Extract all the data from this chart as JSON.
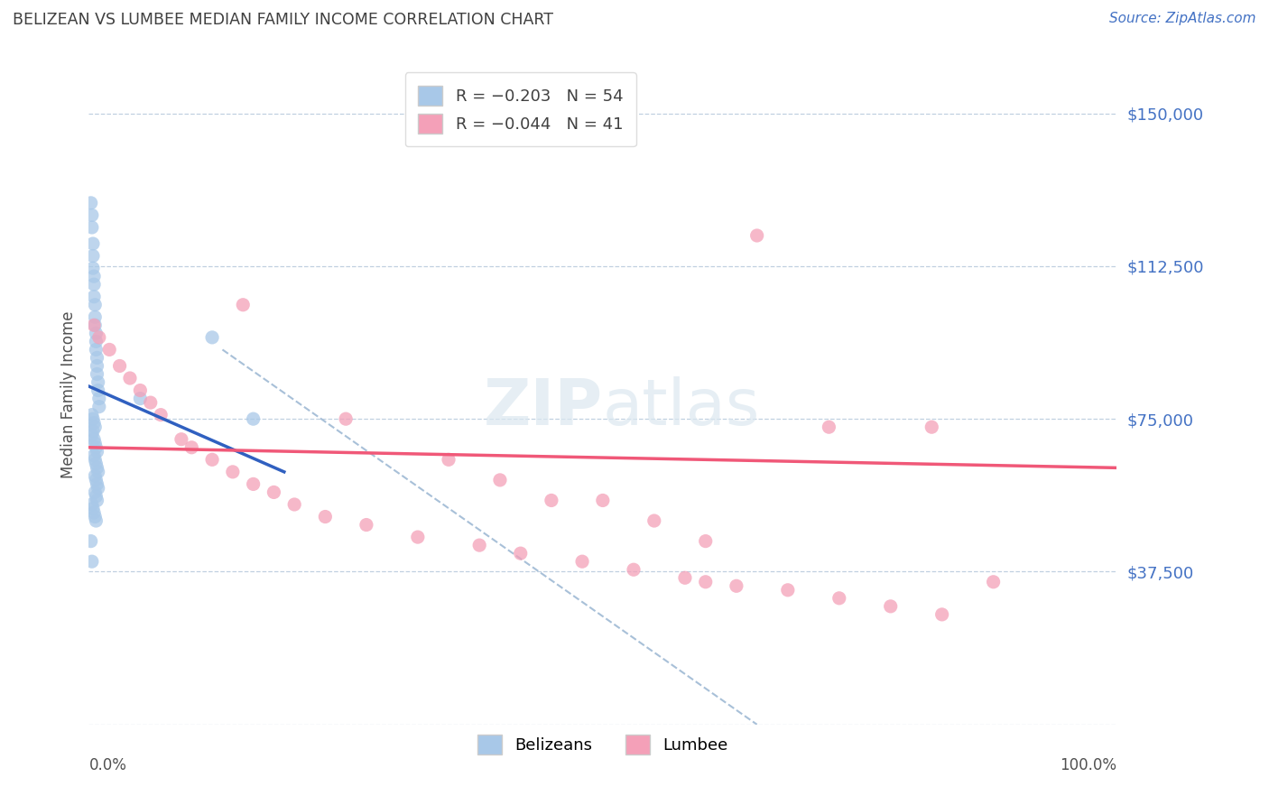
{
  "title": "BELIZEAN VS LUMBEE MEDIAN FAMILY INCOME CORRELATION CHART",
  "source": "Source: ZipAtlas.com",
  "ylabel": "Median Family Income",
  "ytick_values": [
    0,
    37500,
    75000,
    112500,
    150000
  ],
  "ytick_labels": [
    "",
    "$37,500",
    "$75,000",
    "$112,500",
    "$150,000"
  ],
  "xlim": [
    0.0,
    1.0
  ],
  "ylim": [
    0,
    162000
  ],
  "belizean_color": "#a8c8e8",
  "lumbee_color": "#f4a0b8",
  "belizean_line_color": "#3060c0",
  "lumbee_line_color": "#f05878",
  "dashed_line_color": "#a8c0d8",
  "R_belizean": -0.203,
  "N_belizean": 54,
  "R_lumbee": -0.044,
  "N_lumbee": 41,
  "legend_labels": [
    "Belizeans",
    "Lumbee"
  ],
  "background_color": "#ffffff",
  "grid_color": "#c0d0e0",
  "title_color": "#404040",
  "source_color": "#4472c4",
  "ytick_color": "#4472c4",
  "belizean_line_x0": 0.0,
  "belizean_line_y0": 83000,
  "belizean_line_x1": 0.19,
  "belizean_line_y1": 62000,
  "lumbee_line_x0": 0.0,
  "lumbee_line_y0": 68000,
  "lumbee_line_x1": 1.0,
  "lumbee_line_y1": 63000,
  "dash_line_x0": 0.13,
  "dash_line_y0": 92000,
  "dash_line_x1": 0.65,
  "dash_line_y1": 0,
  "belizean_scatter_x": [
    0.002,
    0.003,
    0.003,
    0.004,
    0.004,
    0.004,
    0.005,
    0.005,
    0.005,
    0.006,
    0.006,
    0.006,
    0.007,
    0.007,
    0.007,
    0.008,
    0.008,
    0.008,
    0.009,
    0.009,
    0.01,
    0.01,
    0.003,
    0.004,
    0.005,
    0.006,
    0.004,
    0.003,
    0.005,
    0.006,
    0.007,
    0.008,
    0.005,
    0.006,
    0.007,
    0.008,
    0.009,
    0.006,
    0.007,
    0.008,
    0.009,
    0.006,
    0.007,
    0.008,
    0.003,
    0.004,
    0.005,
    0.006,
    0.007,
    0.002,
    0.003,
    0.05,
    0.12,
    0.16
  ],
  "belizean_scatter_y": [
    128000,
    125000,
    122000,
    118000,
    115000,
    112000,
    110000,
    108000,
    105000,
    103000,
    100000,
    98000,
    96000,
    94000,
    92000,
    90000,
    88000,
    86000,
    84000,
    82000,
    80000,
    78000,
    76000,
    75000,
    74000,
    73000,
    72000,
    71000,
    70000,
    69000,
    68000,
    67000,
    66000,
    65000,
    64000,
    63000,
    62000,
    61000,
    60000,
    59000,
    58000,
    57000,
    56000,
    55000,
    54000,
    53000,
    52000,
    51000,
    50000,
    45000,
    40000,
    80000,
    95000,
    75000
  ],
  "lumbee_scatter_x": [
    0.005,
    0.01,
    0.02,
    0.03,
    0.04,
    0.05,
    0.06,
    0.07,
    0.09,
    0.1,
    0.12,
    0.14,
    0.16,
    0.18,
    0.2,
    0.23,
    0.27,
    0.32,
    0.38,
    0.42,
    0.48,
    0.53,
    0.58,
    0.63,
    0.68,
    0.73,
    0.78,
    0.83,
    0.15,
    0.25,
    0.35,
    0.45,
    0.55,
    0.4,
    0.5,
    0.6,
    0.65,
    0.72,
    0.82,
    0.88,
    0.6
  ],
  "lumbee_scatter_y": [
    98000,
    95000,
    92000,
    88000,
    85000,
    82000,
    79000,
    76000,
    70000,
    68000,
    65000,
    62000,
    59000,
    57000,
    54000,
    51000,
    49000,
    46000,
    44000,
    42000,
    40000,
    38000,
    36000,
    34000,
    33000,
    31000,
    29000,
    27000,
    103000,
    75000,
    65000,
    55000,
    50000,
    60000,
    55000,
    45000,
    120000,
    73000,
    73000,
    35000,
    35000
  ]
}
